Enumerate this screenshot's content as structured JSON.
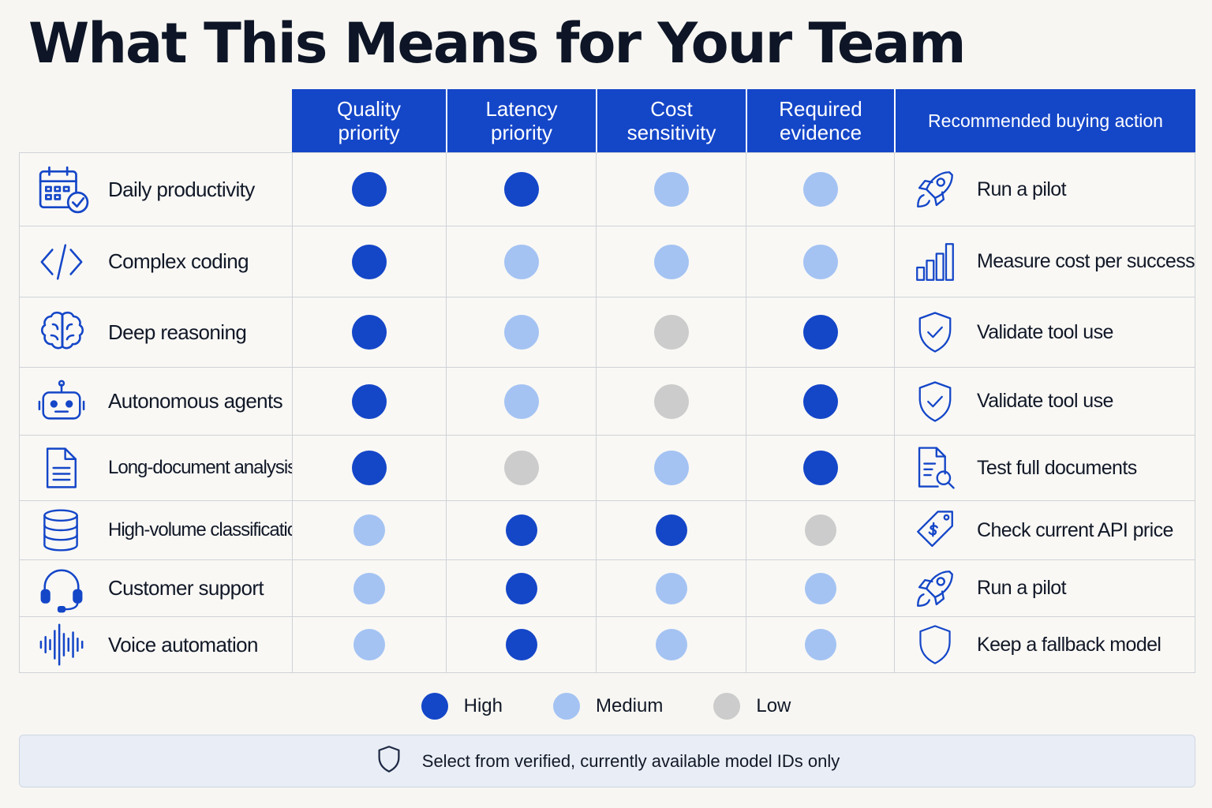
{
  "title": "What This Means for Your Team",
  "colors": {
    "high": "#1446c8",
    "medium": "#a4c3f3",
    "low": "#cccccc",
    "header_bg": "#1446c8",
    "icon": "#1446c8"
  },
  "columns": [
    {
      "line1": "Quality",
      "line2": "priority"
    },
    {
      "line1": "Latency",
      "line2": "priority"
    },
    {
      "line1": "Cost",
      "line2": "sensitivity"
    },
    {
      "line1": "Required",
      "line2": "evidence"
    },
    {
      "line1": "Recommended buying action",
      "line2": ""
    }
  ],
  "rows": [
    {
      "label": "Daily productivity",
      "icon": "calendar-check-icon",
      "ratings": [
        "high",
        "high",
        "medium",
        "medium"
      ],
      "action": "Run a pilot",
      "action_icon": "rocket-icon"
    },
    {
      "label": "Complex coding",
      "icon": "code-icon",
      "ratings": [
        "high",
        "medium",
        "medium",
        "medium"
      ],
      "action": "Measure cost per success",
      "action_icon": "bar-chart-icon"
    },
    {
      "label": "Deep reasoning",
      "icon": "brain-icon",
      "ratings": [
        "high",
        "medium",
        "low",
        "high"
      ],
      "action": "Validate tool use",
      "action_icon": "shield-check-icon"
    },
    {
      "label": "Autonomous agents",
      "icon": "robot-icon",
      "ratings": [
        "high",
        "medium",
        "low",
        "high"
      ],
      "action": "Validate tool use",
      "action_icon": "shield-check-icon"
    },
    {
      "label": "Long-document analysis",
      "icon": "document-icon",
      "ratings": [
        "high",
        "low",
        "medium",
        "high"
      ],
      "action": "Test full documents",
      "action_icon": "document-search-icon"
    },
    {
      "label": "High-volume classification",
      "icon": "database-icon",
      "ratings": [
        "medium",
        "high",
        "high",
        "low"
      ],
      "action": "Check current API price",
      "action_icon": "price-tag-icon"
    },
    {
      "label": "Customer support",
      "icon": "headset-icon",
      "ratings": [
        "medium",
        "high",
        "medium",
        "medium"
      ],
      "action": "Run a pilot",
      "action_icon": "rocket-icon"
    },
    {
      "label": "Voice automation",
      "icon": "waveform-icon",
      "ratings": [
        "medium",
        "high",
        "medium",
        "medium"
      ],
      "action": "Keep a fallback model",
      "action_icon": "shield-icon"
    }
  ],
  "legend": [
    {
      "level": "high",
      "label": "High"
    },
    {
      "level": "medium",
      "label": "Medium"
    },
    {
      "level": "low",
      "label": "Low"
    }
  ],
  "footer": {
    "text": "Select from verified, currently available model IDs only",
    "icon": "shield-icon"
  }
}
